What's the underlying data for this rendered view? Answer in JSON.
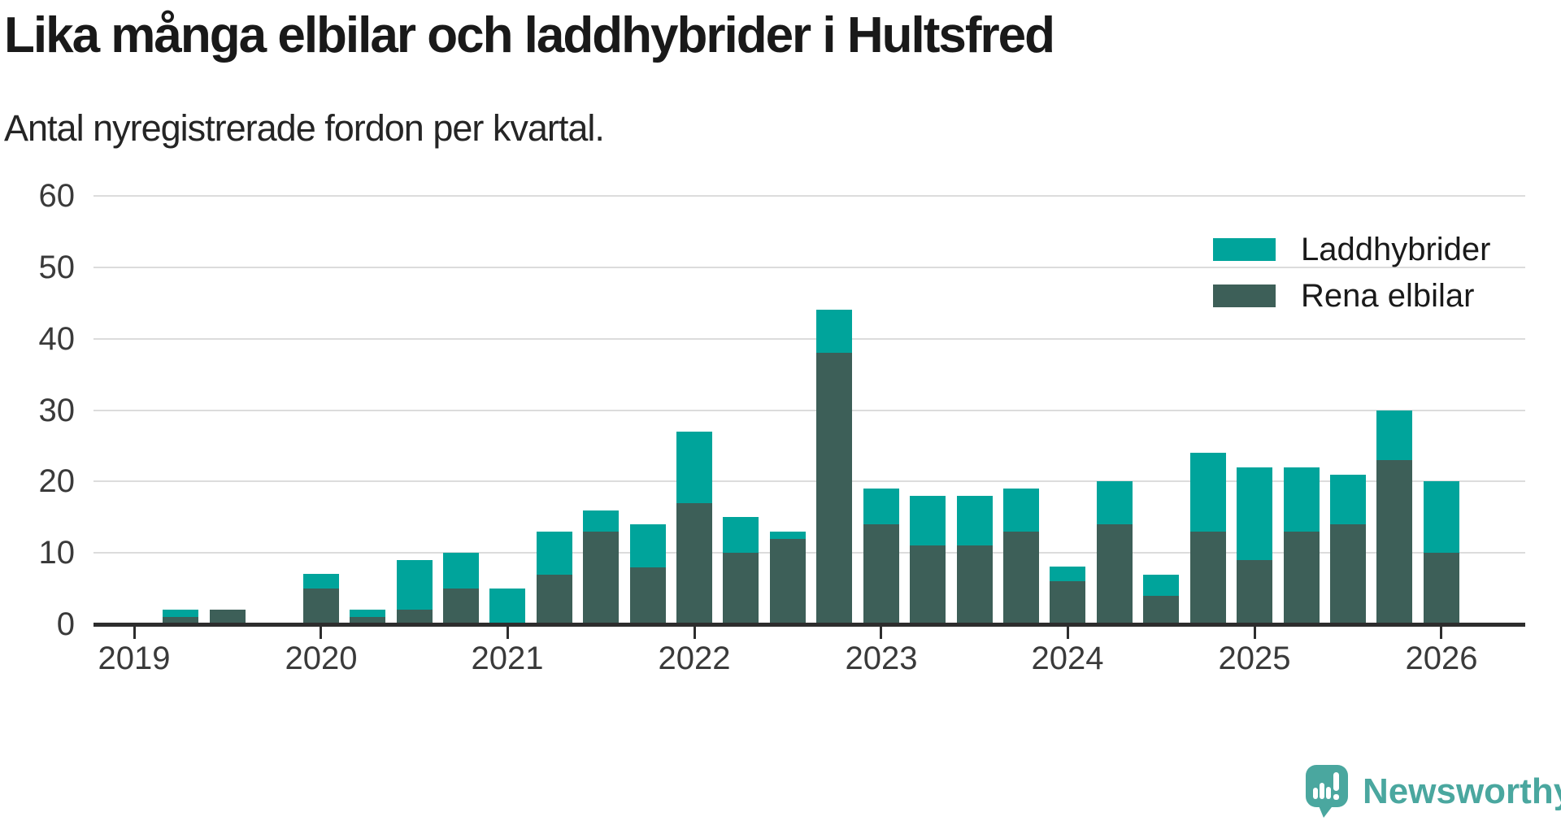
{
  "header": {
    "title": "Lika många elbilar och laddhybrider i Hultsfred",
    "subtitle": "Antal nyregistrerade fordon per kvartal."
  },
  "legend": {
    "items": [
      {
        "label": "Laddhybrider",
        "color": "#00a49b"
      },
      {
        "label": "Rena elbilar",
        "color": "#3d5f58"
      }
    ]
  },
  "branding": {
    "logo_text": "Newsworthy",
    "logo_color": "#4aa79f",
    "logo_icon": "speech-bubble-bar-chart-icon"
  },
  "chart_data": {
    "type": "bar",
    "stacked": true,
    "title": "Lika många elbilar och laddhybrider i Hultsfred",
    "subtitle": "Antal nyregistrerade fordon per kvartal.",
    "xlabel": "",
    "ylabel": "",
    "ylim": [
      0,
      60
    ],
    "yticks": [
      0,
      10,
      20,
      30,
      40,
      50,
      60
    ],
    "grid": true,
    "legend_position": "top-right",
    "x_year_ticks": [
      "2019",
      "2020",
      "2021",
      "2022",
      "2023",
      "2024",
      "2025",
      "2026"
    ],
    "categories": [
      "2019 Q1",
      "2019 Q2",
      "2019 Q3",
      "2019 Q4",
      "2020 Q1",
      "2020 Q2",
      "2020 Q3",
      "2020 Q4",
      "2021 Q1",
      "2021 Q2",
      "2021 Q3",
      "2021 Q4",
      "2022 Q1",
      "2022 Q2",
      "2022 Q3",
      "2022 Q4",
      "2023 Q1",
      "2023 Q2",
      "2023 Q3",
      "2023 Q4",
      "2024 Q1",
      "2024 Q2",
      "2024 Q3",
      "2024 Q4",
      "2025 Q1",
      "2025 Q2",
      "2025 Q3",
      "2025 Q4",
      "2026 Q1"
    ],
    "series": [
      {
        "name": "Rena elbilar",
        "color": "#3d5f58",
        "stack_position": "bottom",
        "values": [
          0,
          1,
          2,
          0,
          5,
          1,
          2,
          5,
          0,
          7,
          13,
          8,
          17,
          10,
          12,
          38,
          14,
          11,
          11,
          13,
          6,
          14,
          4,
          13,
          9,
          13,
          14,
          23,
          10
        ]
      },
      {
        "name": "Laddhybrider",
        "color": "#00a49b",
        "stack_position": "top",
        "values": [
          0,
          1,
          0,
          0,
          2,
          1,
          7,
          5,
          5,
          6,
          3,
          6,
          10,
          5,
          1,
          6,
          5,
          7,
          7,
          6,
          2,
          6,
          3,
          11,
          13,
          9,
          7,
          7,
          10
        ]
      }
    ],
    "totals": [
      0,
      2,
      2,
      0,
      7,
      2,
      9,
      10,
      5,
      13,
      16,
      14,
      27,
      15,
      13,
      44,
      19,
      18,
      18,
      19,
      8,
      20,
      7,
      24,
      22,
      22,
      21,
      30,
      20
    ]
  }
}
